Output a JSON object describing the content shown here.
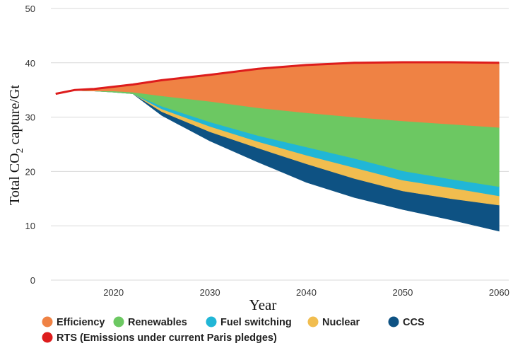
{
  "chart_data": {
    "type": "area",
    "title": "",
    "xlabel": "Year",
    "ylabel_parts": [
      "Total CO",
      "2",
      " capture/Gt"
    ],
    "xlim": [
      2013.5,
      2061
    ],
    "ylim": [
      0,
      50
    ],
    "yticks": [
      0,
      10,
      20,
      30,
      40,
      50
    ],
    "xticks": [
      2020,
      2030,
      2040,
      2050,
      2060
    ],
    "x": [
      2014,
      2016,
      2018,
      2020,
      2022,
      2025,
      2030,
      2035,
      2040,
      2045,
      2050,
      2055,
      2060
    ],
    "bands": [
      {
        "name": "CCS",
        "color": "#0e5283",
        "lower": [
          34.3,
          34.9,
          34.8,
          34.6,
          34.3,
          30.3,
          25.6,
          21.7,
          18.0,
          15.2,
          13.0,
          11.1,
          9.0
        ]
      },
      {
        "name": "Nuclear",
        "color": "#f1bd4f",
        "lower": [
          34.3,
          34.9,
          34.8,
          34.6,
          34.3,
          31.0,
          27.3,
          24.3,
          21.4,
          18.7,
          16.4,
          15.0,
          13.8
        ]
      },
      {
        "name": "Fuel switching",
        "color": "#21b6d6",
        "lower": [
          34.3,
          34.9,
          34.8,
          34.6,
          34.3,
          31.5,
          28.3,
          25.5,
          23.0,
          20.7,
          18.4,
          17.0,
          15.5
        ]
      },
      {
        "name": "Renewables",
        "color": "#6cc862",
        "lower": [
          34.3,
          34.9,
          34.8,
          34.6,
          34.3,
          32.0,
          29.1,
          26.6,
          24.5,
          22.4,
          20.1,
          18.6,
          17.2
        ]
      },
      {
        "name": "Efficiency",
        "color": "#ef8244",
        "lower": [
          34.3,
          34.9,
          34.8,
          34.8,
          34.6,
          33.9,
          32.9,
          31.7,
          30.8,
          30.0,
          29.3,
          28.7,
          28.1
        ]
      }
    ],
    "top_line": {
      "name": "RTS (Emissions under current Paris pledges)",
      "color": "#dd1c1c",
      "values": [
        34.3,
        35.0,
        35.2,
        35.6,
        36.0,
        36.8,
        37.8,
        38.9,
        39.6,
        40.0,
        40.1,
        40.1,
        40.0
      ]
    },
    "legend": [
      {
        "label": "Efficiency",
        "color": "#ef8244"
      },
      {
        "label": "Renewables",
        "color": "#6cc862"
      },
      {
        "label": "Fuel switching",
        "color": "#21b6d6"
      },
      {
        "label": "Nuclear",
        "color": "#f1bd4f"
      },
      {
        "label": "CCS",
        "color": "#0e5283"
      },
      {
        "label": "RTS (Emissions under current Paris pledges)",
        "color": "#dd1c1c"
      }
    ]
  }
}
